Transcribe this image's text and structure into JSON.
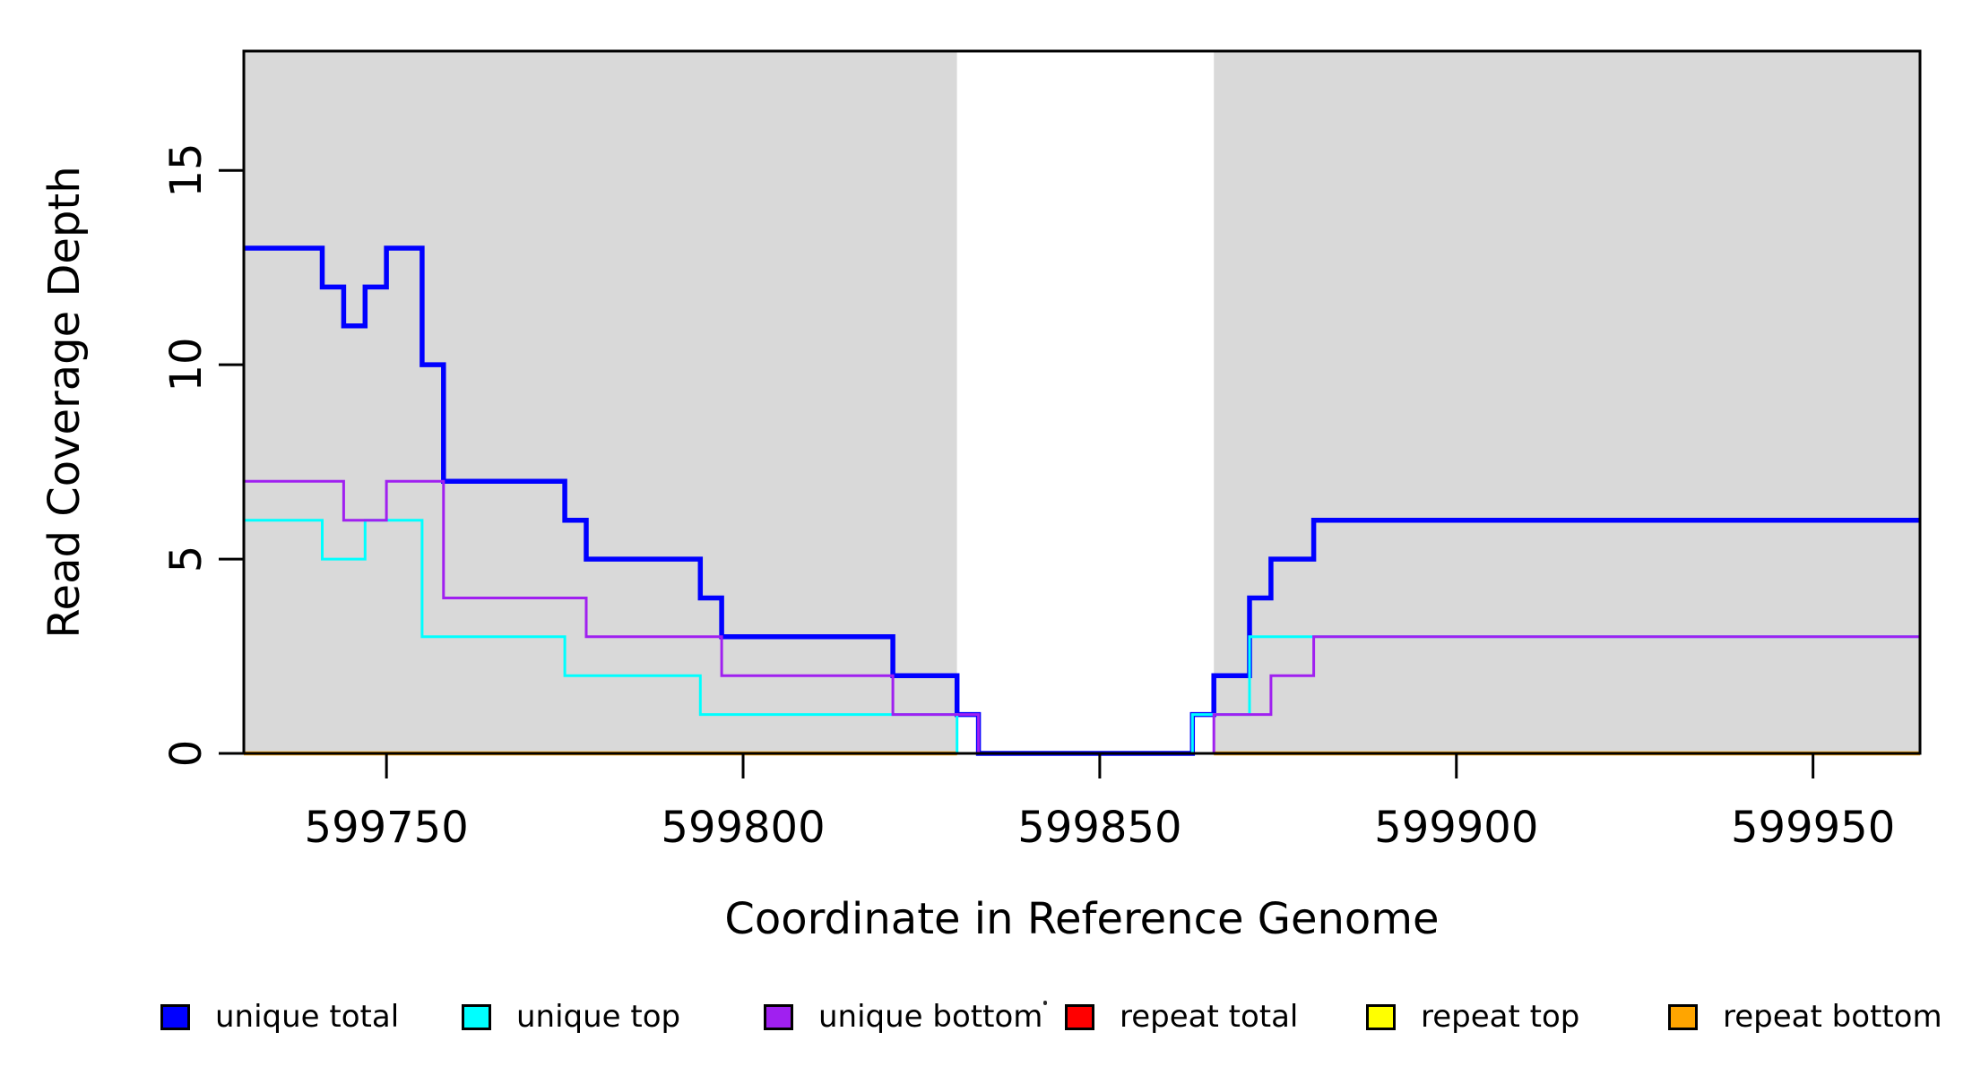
{
  "chart_data": {
    "type": "line",
    "subtype": "step",
    "xlabel": "Coordinate in Reference Genome",
    "ylabel": "Read Coverage Depth",
    "xlim": [
      599730,
      599965
    ],
    "ylim": [
      0,
      18.07
    ],
    "x_ticks": [
      599750,
      599800,
      599850,
      599900,
      599950
    ],
    "x_tick_labels": [
      "599750",
      "599800",
      "599850",
      "599900",
      "599950"
    ],
    "y_ticks": [
      0,
      5,
      10,
      15
    ],
    "y_tick_labels": [
      "0",
      "5",
      "10",
      "15"
    ],
    "grid": false,
    "background_regions": [
      {
        "name": "repeat-region-left",
        "from": 599730,
        "to": 599830,
        "color": "#D9D9D9"
      },
      {
        "name": "unique-gap",
        "from": 599830,
        "to": 599866,
        "color": "#FFFFFF"
      },
      {
        "name": "repeat-region-right",
        "from": 599866,
        "to": 599965,
        "color": "#D9D9D9"
      }
    ],
    "series": [
      {
        "name": "repeat total",
        "color": "#FF0000",
        "width": 3,
        "segments": [
          [
            [
              599730,
              0
            ],
            [
              599830,
              0
            ]
          ],
          [
            [
              599866,
              0
            ],
            [
              599965,
              0
            ]
          ]
        ]
      },
      {
        "name": "repeat top",
        "color": "#FFFF00",
        "width": 3,
        "segments": [
          [
            [
              599730,
              0
            ],
            [
              599830,
              0
            ]
          ],
          [
            [
              599866,
              0
            ],
            [
              599965,
              0
            ]
          ]
        ]
      },
      {
        "name": "repeat bottom",
        "color": "#FFA500",
        "width": 4.5,
        "segments": [
          [
            [
              599730,
              0
            ],
            [
              599830,
              0
            ]
          ],
          [
            [
              599866,
              0
            ],
            [
              599965,
              0
            ]
          ]
        ]
      },
      {
        "name": "unique total",
        "color": "#0000FF",
        "width": 5.5,
        "segments": [
          [
            [
              599730,
              13
            ],
            [
              599741,
              12
            ],
            [
              599744,
              11
            ],
            [
              599747,
              12
            ],
            [
              599750,
              13
            ],
            [
              599755,
              10
            ],
            [
              599758,
              7
            ],
            [
              599775,
              6
            ],
            [
              599778,
              5
            ],
            [
              599794,
              4
            ],
            [
              599797,
              3
            ],
            [
              599821,
              2
            ],
            [
              599830,
              1
            ],
            [
              599833,
              0
            ],
            [
              599863,
              1
            ],
            [
              599866,
              2
            ],
            [
              599871,
              4
            ],
            [
              599874,
              5
            ],
            [
              599880,
              6
            ],
            [
              599965,
              6
            ]
          ]
        ]
      },
      {
        "name": "unique top",
        "color": "#00FFFF",
        "width": 3,
        "segments": [
          [
            [
              599730,
              6
            ],
            [
              599741,
              5
            ],
            [
              599747,
              6
            ],
            [
              599755,
              3
            ],
            [
              599775,
              2
            ],
            [
              599794,
              1
            ],
            [
              599830,
              0
            ],
            [
              599863,
              1
            ],
            [
              599871,
              3
            ],
            [
              599965,
              3
            ]
          ]
        ]
      },
      {
        "name": "unique bottom",
        "color": "#A020F0",
        "width": 3,
        "segments": [
          [
            [
              599730,
              7
            ],
            [
              599744,
              6
            ],
            [
              599750,
              7
            ],
            [
              599758,
              4
            ],
            [
              599778,
              3
            ],
            [
              599797,
              2
            ],
            [
              599821,
              1
            ],
            [
              599833,
              0
            ],
            [
              599866,
              1
            ],
            [
              599874,
              2
            ],
            [
              599880,
              3
            ],
            [
              599965,
              3
            ]
          ]
        ]
      }
    ],
    "legend_position": "bottom"
  },
  "legend": {
    "items": [
      {
        "label": "unique total",
        "color": "#0000FF"
      },
      {
        "label": "unique top",
        "color": "#00FFFF"
      },
      {
        "label": "unique bottom",
        "color": "#A020F0"
      },
      {
        "label": "repeat total",
        "color": "#FF0000"
      },
      {
        "label": "repeat top",
        "color": "#FFFF00"
      },
      {
        "label": "repeat bottom",
        "color": "#FFA500"
      }
    ]
  }
}
